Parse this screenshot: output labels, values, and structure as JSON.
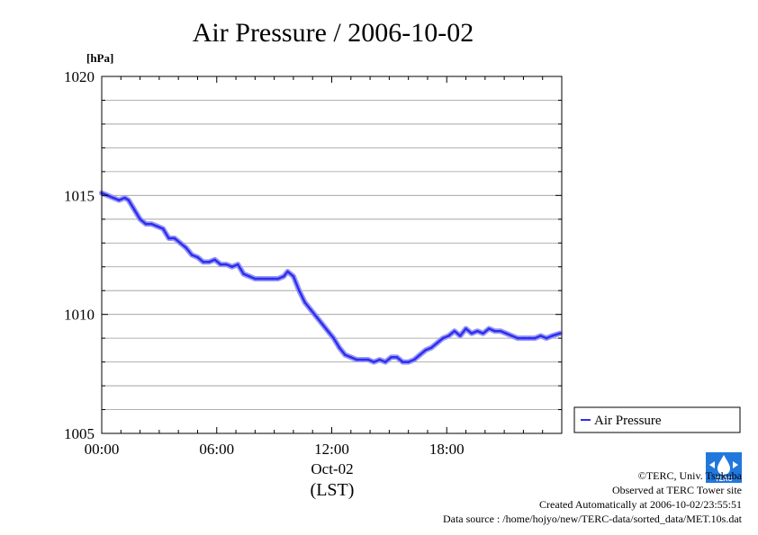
{
  "chart_data": {
    "type": "line",
    "title": "Air Pressure / 2006-10-02",
    "ylabel": "[hPa]",
    "xlabel": "(LST)",
    "date_label": "Oct-02",
    "ylim": [
      1005,
      1020
    ],
    "xlim": [
      0,
      24
    ],
    "y_ticks": [
      "1005",
      "1010",
      "1015",
      "1020"
    ],
    "x_ticks": [
      "00:00",
      "06:00",
      "12:00",
      "18:00"
    ],
    "grid": true,
    "legend_position": "right",
    "series_color": "#2e2ef0",
    "series": [
      {
        "name": "Air Pressure",
        "x": [
          0,
          0.3,
          0.6,
          0.9,
          1.2,
          1.4,
          1.7,
          2.0,
          2.3,
          2.6,
          2.9,
          3.2,
          3.5,
          3.8,
          4.1,
          4.4,
          4.7,
          5.0,
          5.3,
          5.6,
          5.9,
          6.2,
          6.5,
          6.8,
          7.1,
          7.4,
          7.7,
          8.0,
          8.3,
          8.6,
          8.9,
          9.2,
          9.5,
          9.7,
          10.0,
          10.3,
          10.6,
          10.9,
          11.2,
          11.5,
          11.8,
          12.1,
          12.4,
          12.7,
          13.0,
          13.3,
          13.6,
          13.9,
          14.2,
          14.5,
          14.8,
          15.1,
          15.4,
          15.7,
          16.0,
          16.3,
          16.6,
          16.9,
          17.2,
          17.5,
          17.8,
          18.1,
          18.4,
          18.7,
          19.0,
          19.3,
          19.6,
          19.9,
          20.2,
          20.5,
          20.8,
          21.1,
          21.4,
          21.7,
          22.0,
          22.3,
          22.6,
          22.9,
          23.2,
          23.5,
          23.9
        ],
        "values": [
          1015.1,
          1015.0,
          1014.9,
          1014.8,
          1014.9,
          1014.8,
          1014.4,
          1014.0,
          1013.8,
          1013.8,
          1013.7,
          1013.6,
          1013.2,
          1013.2,
          1013.0,
          1012.8,
          1012.5,
          1012.4,
          1012.2,
          1012.2,
          1012.3,
          1012.1,
          1012.1,
          1012.0,
          1012.1,
          1011.7,
          1011.6,
          1011.5,
          1011.5,
          1011.5,
          1011.5,
          1011.5,
          1011.6,
          1011.8,
          1011.6,
          1011.0,
          1010.5,
          1010.2,
          1009.9,
          1009.6,
          1009.3,
          1009.0,
          1008.6,
          1008.3,
          1008.2,
          1008.1,
          1008.1,
          1008.1,
          1008.0,
          1008.1,
          1008.0,
          1008.2,
          1008.2,
          1008.0,
          1008.0,
          1008.1,
          1008.3,
          1008.5,
          1008.6,
          1008.8,
          1009.0,
          1009.1,
          1009.3,
          1009.1,
          1009.4,
          1009.2,
          1009.3,
          1009.2,
          1009.4,
          1009.3,
          1009.3,
          1009.2,
          1009.1,
          1009.0,
          1009.0,
          1009.0,
          1009.0,
          1009.1,
          1009.0,
          1009.1,
          1009.2
        ]
      }
    ]
  },
  "credits": {
    "copyright": "©TERC, Univ. Tsukuba",
    "observed": "Observed at TERC Tower site",
    "created": "Created Automatically at 2006-10-02/23:55:51",
    "source": "Data source : /home/hojyo/new/TERC-data/sorted_data/MET.10s.dat",
    "logo_text": "TERC"
  }
}
